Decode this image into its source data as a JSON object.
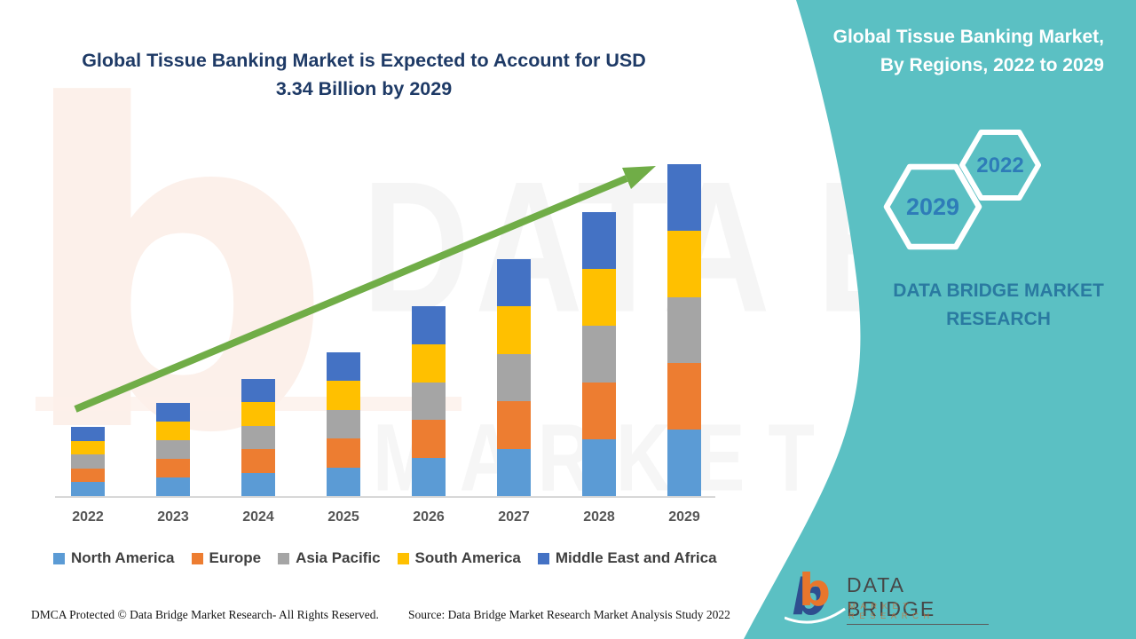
{
  "title": {
    "line1": "Global Tissue Banking Market is Expected to Account for USD",
    "line2": "3.34 Billion by 2029"
  },
  "panel": {
    "heading_line1": "Global Tissue Banking Market,",
    "heading_line2": "By Regions, 2022 to 2029",
    "hexagon_large_label": "2029",
    "hexagon_small_label": "2022",
    "brand_line1": "DATA BRIDGE MARKET",
    "brand_line2": "RESEARCH",
    "logo_name": "DATA BRIDGE",
    "logo_tagline": "MARKET RESEARCH"
  },
  "watermarks": {
    "big_text": "DATA BRIDGE",
    "lower_text": "MARKET RESEARCH",
    "letter": "b"
  },
  "footer": {
    "dmca": "DMCA Protected © Data Bridge Market Research- All Rights Reserved.",
    "source": "Source: Data Bridge Market Research Market Analysis Study 2022"
  },
  "colors": {
    "teal_panel": "#5bc0c3",
    "title_navy": "#1e3a66",
    "hex_label_blue": "#2e7cb8",
    "brand_teal_blue": "#2a7aa1",
    "arrow_green": "#70AD47",
    "axis_gray": "#d8d8d8"
  },
  "chart_data": {
    "type": "bar",
    "stacked": true,
    "title": "Global Tissue Banking Market, By Regions, 2022 to 2029",
    "unit": "USD Billion",
    "categories": [
      "2022",
      "2023",
      "2024",
      "2025",
      "2026",
      "2027",
      "2028",
      "2029"
    ],
    "series": [
      {
        "name": "North America",
        "color": "#5B9BD5",
        "values": [
          0.14,
          0.188,
          0.236,
          0.29,
          0.382,
          0.476,
          0.572,
          0.668
        ]
      },
      {
        "name": "Europe",
        "color": "#ED7D31",
        "values": [
          0.14,
          0.188,
          0.236,
          0.29,
          0.382,
          0.476,
          0.572,
          0.668
        ]
      },
      {
        "name": "Asia Pacific",
        "color": "#A5A5A5",
        "values": [
          0.14,
          0.188,
          0.236,
          0.29,
          0.382,
          0.476,
          0.572,
          0.668
        ]
      },
      {
        "name": "South America",
        "color": "#FFC000",
        "values": [
          0.14,
          0.188,
          0.236,
          0.29,
          0.382,
          0.476,
          0.572,
          0.668
        ]
      },
      {
        "name": "Middle East and Africa",
        "color": "#4472C4",
        "values": [
          0.14,
          0.188,
          0.236,
          0.29,
          0.382,
          0.476,
          0.572,
          0.668
        ]
      }
    ],
    "totals": [
      0.7,
      0.94,
      1.18,
      1.45,
      1.91,
      2.38,
      2.86,
      3.34
    ],
    "highlight_value": "USD 3.34 Billion by 2029",
    "trend_arrow": true,
    "legend_position": "bottom",
    "xlabel": "",
    "ylabel": "",
    "y_axis_visible": false,
    "grid": false
  }
}
